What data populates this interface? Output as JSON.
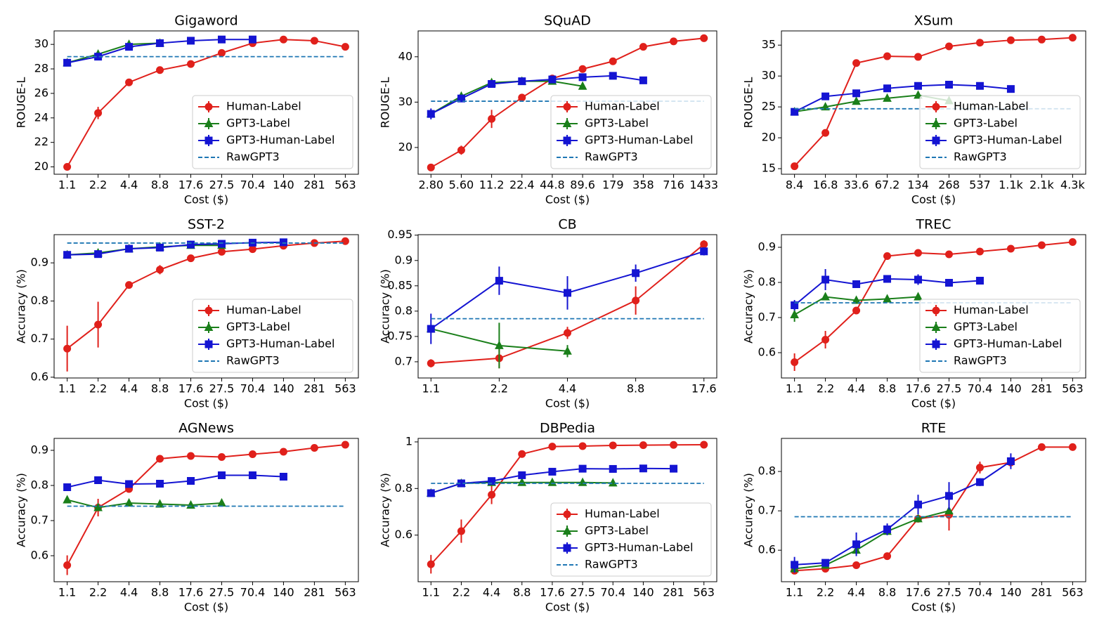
{
  "chart_data": [
    {
      "type": "line",
      "title": "Gigaword",
      "xlabel": "Cost ($)",
      "ylabel": "ROUGE-L",
      "legend": "lower right",
      "categories": [
        "1.1",
        "2.2",
        "4.4",
        "8.8",
        "17.6",
        "27.5",
        "70.4",
        "140",
        "281",
        "563"
      ],
      "ylim": [
        19.4,
        31.1
      ],
      "yticks": [
        20,
        22,
        24,
        26,
        28,
        30
      ],
      "series": [
        {
          "name": "Human-Label",
          "color": "#e0201b",
          "marker": "o",
          "values": [
            20.0,
            24.4,
            26.9,
            27.9,
            28.4,
            29.3,
            30.1,
            30.4,
            30.3,
            29.8
          ],
          "errors": [
            null,
            0.5,
            null,
            null,
            null,
            null,
            null,
            null,
            null,
            null
          ]
        },
        {
          "name": "GPT3-Label",
          "color": "#1a7f1a",
          "marker": "^",
          "values": [
            28.5,
            29.2,
            30.0,
            30.1,
            null,
            null,
            null,
            null,
            null,
            null
          ]
        },
        {
          "name": "GPT3-Human-Label",
          "color": "#1414d2",
          "marker": "s",
          "values": [
            28.5,
            29.0,
            29.8,
            30.1,
            30.3,
            30.4,
            30.4,
            null,
            null,
            null
          ]
        },
        {
          "name": "RawGPT3",
          "color": "#1f77b4",
          "dashed": true,
          "value": 29.0
        }
      ]
    },
    {
      "type": "line",
      "title": "SQuAD",
      "xlabel": "Cost ($)",
      "ylabel": "ROUGE-L",
      "legend": "lower right",
      "categories": [
        "2.80",
        "5.60",
        "11.2",
        "22.4",
        "44.8",
        "89.6",
        "179",
        "358",
        "716",
        "1433"
      ],
      "ylim": [
        14.1,
        45.7
      ],
      "yticks": [
        20,
        30,
        40
      ],
      "series": [
        {
          "name": "Human-Label",
          "color": "#e0201b",
          "marker": "o",
          "values": [
            15.6,
            19.4,
            26.3,
            31.0,
            35.2,
            37.3,
            39.0,
            42.2,
            43.4,
            44.1
          ],
          "errors": [
            null,
            1.0,
            2.0,
            null,
            null,
            null,
            null,
            null,
            null,
            null
          ]
        },
        {
          "name": "GPT3-Label",
          "color": "#1a7f1a",
          "marker": "^",
          "values": [
            27.4,
            31.3,
            34.3,
            34.6,
            34.6,
            33.5,
            null,
            null,
            null,
            null
          ]
        },
        {
          "name": "GPT3-Human-Label",
          "color": "#1414d2",
          "marker": "s",
          "values": [
            27.4,
            30.8,
            34.0,
            34.6,
            35.0,
            35.5,
            35.8,
            34.8,
            null,
            null
          ],
          "errors": [
            1.2,
            null,
            null,
            null,
            null,
            null,
            null,
            null,
            null,
            null
          ]
        },
        {
          "name": "RawGPT3",
          "color": "#1f77b4",
          "dashed": true,
          "value": 30.2
        }
      ]
    },
    {
      "type": "line",
      "title": "XSum",
      "xlabel": "Cost ($)",
      "ylabel": "ROUGE-L",
      "legend": "lower right",
      "categories": [
        "8.4",
        "16.8",
        "33.6",
        "67.2",
        "134",
        "268",
        "537",
        "1.1k",
        "2.1k",
        "4.3k"
      ],
      "ylim": [
        14.1,
        37.3
      ],
      "yticks": [
        15,
        20,
        25,
        30,
        35
      ],
      "series": [
        {
          "name": "Human-Label",
          "color": "#e0201b",
          "marker": "o",
          "values": [
            15.4,
            20.8,
            32.1,
            33.2,
            33.1,
            34.8,
            35.4,
            35.8,
            35.9,
            36.2
          ]
        },
        {
          "name": "GPT3-Label",
          "color": "#1a7f1a",
          "marker": "^",
          "values": [
            24.2,
            25.0,
            25.9,
            26.4,
            26.9,
            26.0,
            null,
            null,
            null,
            null
          ]
        },
        {
          "name": "GPT3-Human-Label",
          "color": "#1414d2",
          "marker": "s",
          "values": [
            24.2,
            26.7,
            27.2,
            28.0,
            28.4,
            28.6,
            28.4,
            27.9,
            null,
            null
          ]
        },
        {
          "name": "RawGPT3",
          "color": "#1f77b4",
          "dashed": true,
          "value": 24.7
        }
      ]
    },
    {
      "type": "line",
      "title": "SST-2",
      "xlabel": "Cost ($)",
      "ylabel": "Accuracy (%)",
      "legend": "lower right",
      "categories": [
        "1.1",
        "2.2",
        "4.4",
        "8.8",
        "17.6",
        "27.5",
        "70.4",
        "140",
        "281",
        "563"
      ],
      "ylim": [
        0.598,
        0.974
      ],
      "yticks": [
        0.6,
        0.7,
        0.8,
        0.9
      ],
      "series": [
        {
          "name": "Human-Label",
          "color": "#e0201b",
          "marker": "o",
          "values": [
            0.675,
            0.738,
            0.842,
            0.882,
            0.912,
            0.929,
            0.936,
            0.945,
            0.952,
            0.957
          ],
          "errors": [
            0.06,
            0.06,
            null,
            0.012,
            null,
            null,
            null,
            null,
            null,
            null
          ]
        },
        {
          "name": "GPT3-Label",
          "color": "#1a7f1a",
          "marker": "^",
          "values": [
            0.921,
            0.926,
            0.937,
            0.942,
            0.946,
            0.946,
            null,
            null,
            null,
            null
          ]
        },
        {
          "name": "GPT3-Human-Label",
          "color": "#1414d2",
          "marker": "s",
          "values": [
            0.921,
            0.923,
            0.937,
            0.94,
            0.948,
            0.95,
            0.953,
            0.954,
            null,
            null
          ]
        },
        {
          "name": "RawGPT3",
          "color": "#1f77b4",
          "dashed": true,
          "value": 0.952
        }
      ]
    },
    {
      "type": "line",
      "title": "CB",
      "xlabel": "Cost ($)",
      "ylabel": "Accuracy (%)",
      "categories": [
        "1.1",
        "2.2",
        "4.4",
        "8.8",
        "17.6"
      ],
      "ylim": [
        0.668,
        0.951
      ],
      "yticks": [
        0.7,
        0.75,
        0.8,
        0.85,
        0.9,
        0.95
      ],
      "series": [
        {
          "name": "Human-Label",
          "color": "#e0201b",
          "marker": "o",
          "values": [
            0.697,
            0.707,
            0.757,
            0.821,
            0.932
          ],
          "errors": [
            0.008,
            0.02,
            0.012,
            0.028,
            0.008
          ]
        },
        {
          "name": "GPT3-Label",
          "color": "#1a7f1a",
          "marker": "^",
          "values": [
            0.765,
            0.732,
            0.721,
            null,
            null
          ],
          "errors": [
            null,
            0.045,
            0.012,
            null,
            null
          ]
        },
        {
          "name": "GPT3-Human-Label",
          "color": "#1414d2",
          "marker": "s",
          "values": [
            0.765,
            0.86,
            0.836,
            0.875,
            0.918
          ],
          "errors": [
            0.03,
            0.028,
            0.033,
            0.017,
            0.008
          ]
        },
        {
          "name": "RawGPT3",
          "color": "#1f77b4",
          "dashed": true,
          "value": 0.785
        }
      ]
    },
    {
      "type": "line",
      "title": "TREC",
      "xlabel": "Cost ($)",
      "ylabel": "Accuracy (%)",
      "legend": "lower right",
      "categories": [
        "1.1",
        "2.2",
        "4.4",
        "8.8",
        "17.6",
        "27.5",
        "70.4",
        "140",
        "281",
        "563"
      ],
      "ylim": [
        0.528,
        0.936
      ],
      "yticks": [
        0.6,
        0.7,
        0.8,
        0.9
      ],
      "series": [
        {
          "name": "Human-Label",
          "color": "#e0201b",
          "marker": "o",
          "values": [
            0.573,
            0.637,
            0.72,
            0.875,
            0.884,
            0.88,
            0.888,
            0.896,
            0.906,
            0.915
          ],
          "errors": [
            0.025,
            0.025,
            null,
            null,
            null,
            null,
            null,
            null,
            null,
            null
          ]
        },
        {
          "name": "GPT3-Label",
          "color": "#1a7f1a",
          "marker": "^",
          "values": [
            0.708,
            0.759,
            0.749,
            0.753,
            0.759,
            null,
            null,
            null,
            null,
            null
          ],
          "errors": [
            0.02,
            null,
            null,
            null,
            null,
            null,
            null,
            null,
            null,
            null
          ]
        },
        {
          "name": "GPT3-Human-Label",
          "color": "#1414d2",
          "marker": "s",
          "values": [
            0.735,
            0.808,
            0.795,
            0.81,
            0.808,
            0.799,
            0.805,
            null,
            null,
            null
          ],
          "errors": [
            0.015,
            0.03,
            null,
            null,
            0.015,
            null,
            null,
            null,
            null,
            null
          ]
        },
        {
          "name": "RawGPT3",
          "color": "#1f77b4",
          "dashed": true,
          "value": 0.742
        }
      ]
    },
    {
      "type": "line",
      "title": "AGNews",
      "xlabel": "Cost ($)",
      "ylabel": "Accuracy (%)",
      "categories": [
        "1.1",
        "2.2",
        "4.4",
        "8.8",
        "17.6",
        "27.5",
        "70.4",
        "140",
        "281",
        "563"
      ],
      "ylim": [
        0.526,
        0.934
      ],
      "yticks": [
        0.6,
        0.7,
        0.8,
        0.9
      ],
      "series": [
        {
          "name": "Human-Label",
          "color": "#e0201b",
          "marker": "o",
          "values": [
            0.573,
            0.737,
            0.79,
            0.876,
            0.884,
            0.881,
            0.889,
            0.896,
            0.907,
            0.916
          ],
          "errors": [
            0.028,
            0.025,
            null,
            null,
            null,
            null,
            null,
            null,
            null,
            null
          ]
        },
        {
          "name": "GPT3-Label",
          "color": "#1a7f1a",
          "marker": "^",
          "values": [
            0.759,
            0.737,
            0.75,
            0.747,
            0.744,
            0.75,
            null,
            null,
            null,
            null
          ]
        },
        {
          "name": "GPT3-Human-Label",
          "color": "#1414d2",
          "marker": "s",
          "values": [
            0.795,
            0.815,
            0.804,
            0.805,
            0.813,
            0.829,
            0.829,
            0.825,
            null,
            null
          ]
        },
        {
          "name": "RawGPT3",
          "color": "#1f77b4",
          "dashed": true,
          "value": 0.741
        }
      ]
    },
    {
      "type": "line",
      "title": "DBPedia",
      "xlabel": "Cost ($)",
      "ylabel": "Accuracy (%)",
      "legend": "lower right",
      "categories": [
        "1.1",
        "2.2",
        "4.4",
        "8.8",
        "17.6",
        "27.5",
        "70.4",
        "140",
        "281",
        "563"
      ],
      "ylim": [
        0.4,
        1.015
      ],
      "yticks": [
        0.6,
        0.8,
        1.0
      ],
      "series": [
        {
          "name": "Human-Label",
          "color": "#e0201b",
          "marker": "o",
          "values": [
            0.475,
            0.617,
            0.773,
            0.948,
            0.98,
            0.982,
            0.985,
            0.986,
            0.987,
            0.988
          ],
          "errors": [
            0.04,
            0.05,
            0.04,
            null,
            null,
            null,
            null,
            null,
            null,
            null
          ]
        },
        {
          "name": "GPT3-Label",
          "color": "#1a7f1a",
          "marker": "^",
          "values": [
            0.78,
            0.822,
            0.826,
            0.826,
            0.826,
            0.826,
            0.824,
            null,
            null,
            null
          ]
        },
        {
          "name": "GPT3-Human-Label",
          "color": "#1414d2",
          "marker": "s",
          "values": [
            0.78,
            0.822,
            0.832,
            0.857,
            0.872,
            0.885,
            0.884,
            0.886,
            0.885,
            null
          ]
        },
        {
          "name": "RawGPT3",
          "color": "#1f77b4",
          "dashed": true,
          "value": 0.822
        }
      ]
    },
    {
      "type": "line",
      "title": "RTE",
      "xlabel": "Cost ($)",
      "ylabel": "Accuracy (%)",
      "categories": [
        "1.1",
        "2.2",
        "4.4",
        "8.8",
        "17.6",
        "27.5",
        "70.4",
        "140",
        "281",
        "563"
      ],
      "ylim": [
        0.52,
        0.884
      ],
      "yticks": [
        0.6,
        0.7,
        0.8
      ],
      "series": [
        {
          "name": "Human-Label",
          "color": "#e0201b",
          "marker": "o",
          "values": [
            0.548,
            0.553,
            0.562,
            0.585,
            0.68,
            0.69,
            0.81,
            0.823,
            0.862,
            0.862
          ],
          "errors": [
            null,
            null,
            null,
            null,
            null,
            0.04,
            0.015,
            null,
            null,
            null
          ]
        },
        {
          "name": "GPT3-Label",
          "color": "#1a7f1a",
          "marker": "^",
          "values": [
            0.553,
            0.562,
            0.6,
            0.648,
            0.68,
            0.7,
            null,
            null,
            null,
            null
          ]
        },
        {
          "name": "GPT3-Human-Label",
          "color": "#1414d2",
          "marker": "s",
          "values": [
            0.563,
            0.568,
            0.615,
            0.653,
            0.716,
            0.738,
            0.773,
            0.826,
            null,
            null
          ],
          "errors": [
            0.02,
            null,
            0.03,
            0.015,
            0.025,
            0.035,
            0.01,
            0.02,
            null,
            null
          ]
        },
        {
          "name": "RawGPT3",
          "color": "#1f77b4",
          "dashed": true,
          "value": 0.685
        }
      ]
    }
  ]
}
